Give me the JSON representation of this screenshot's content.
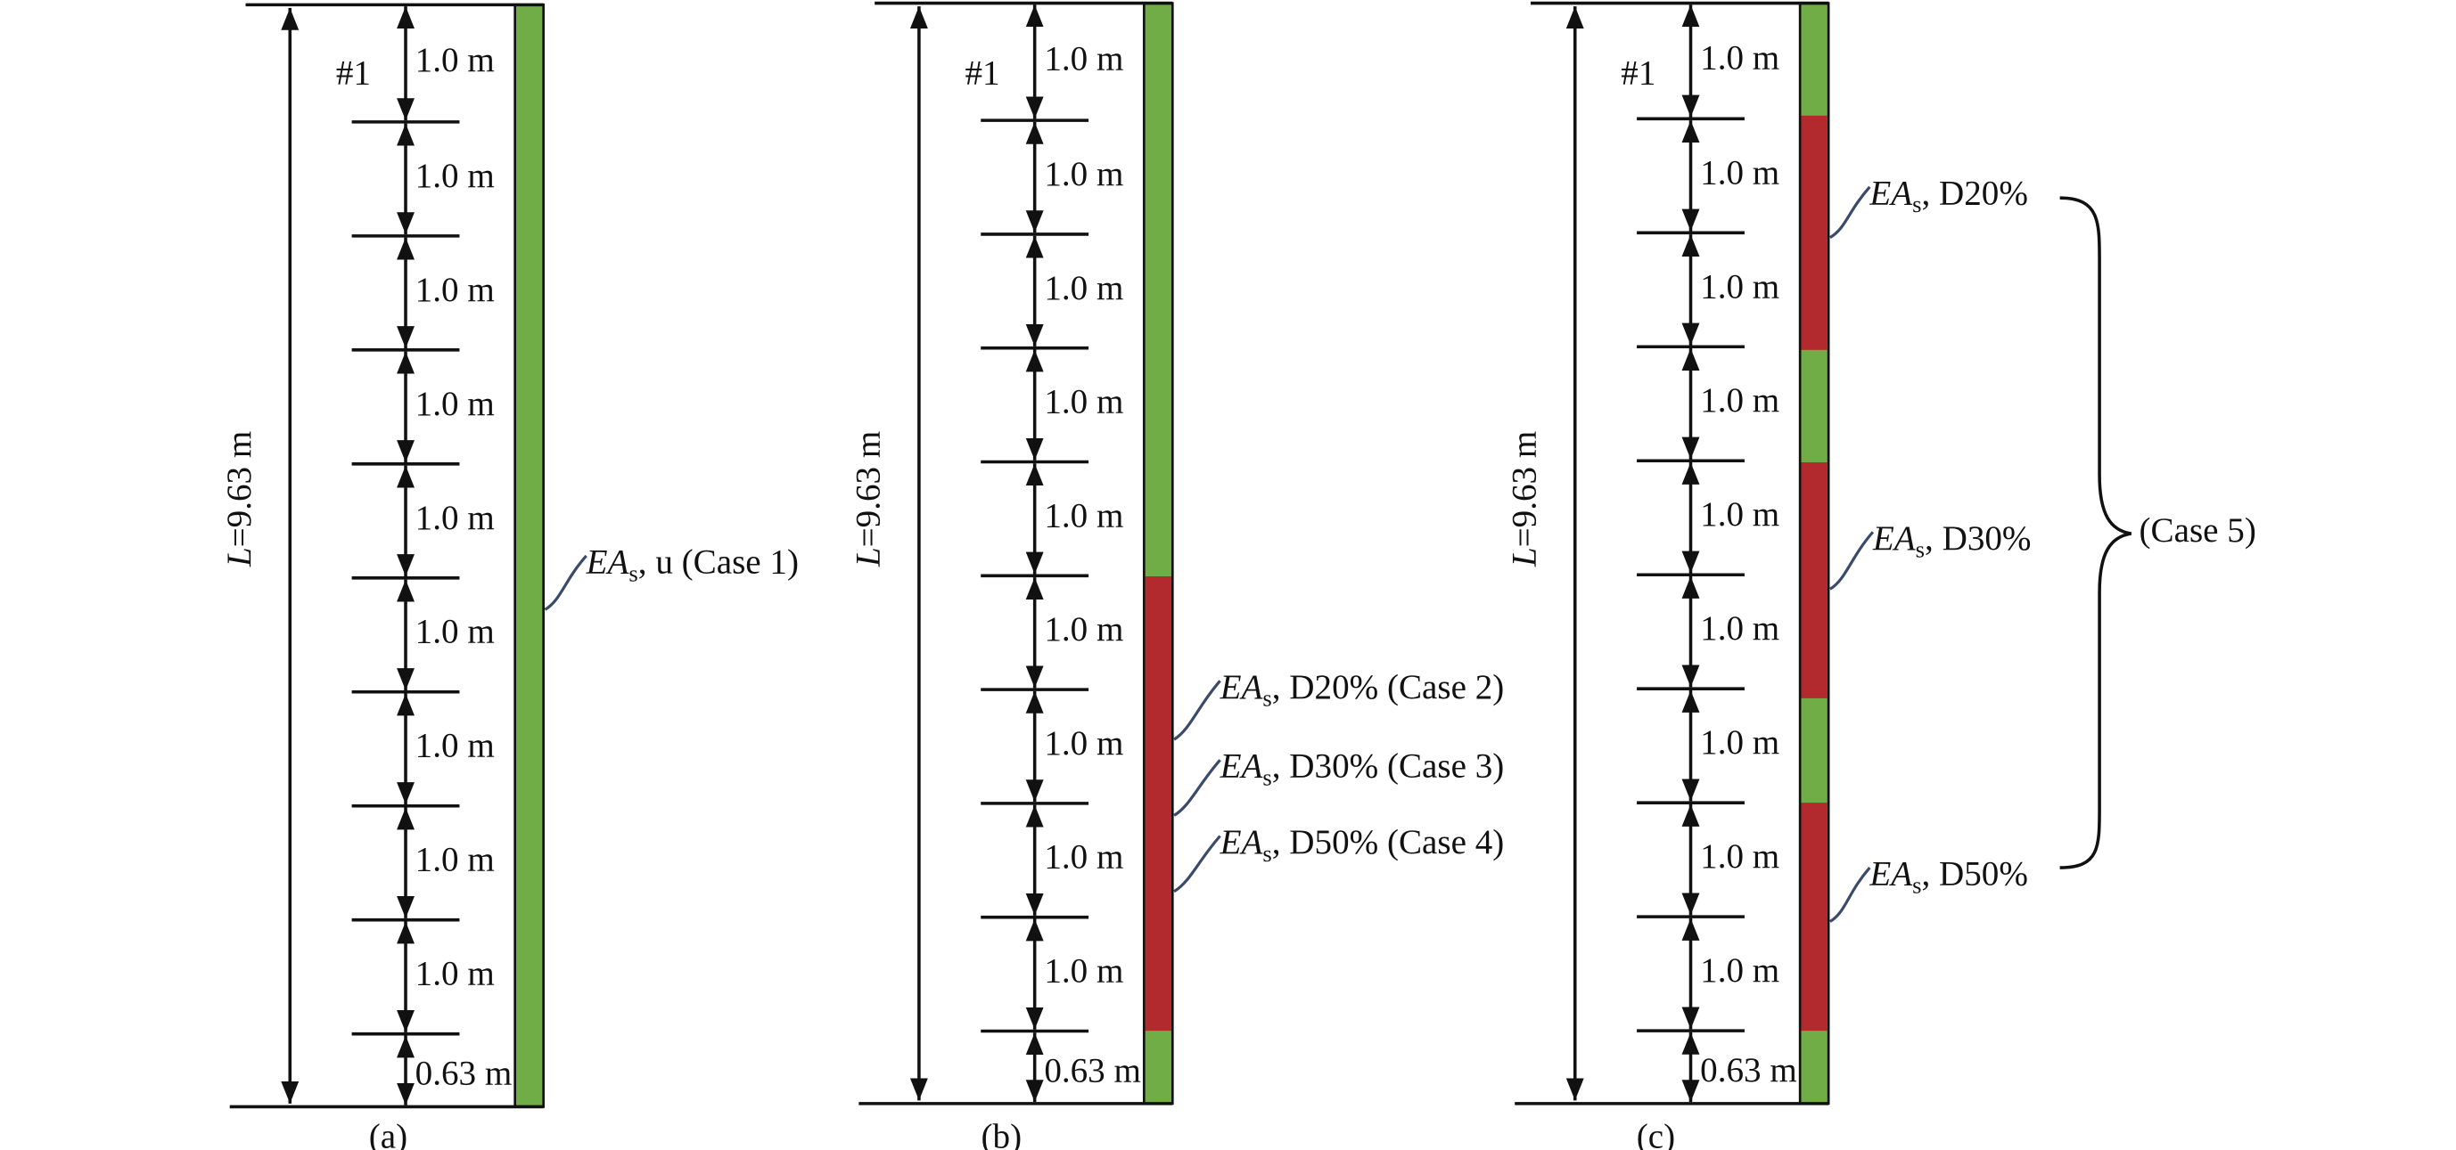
{
  "panels": [
    {
      "caption": "(a)",
      "length": {
        "symbol": "L",
        "text": "=9.63 m"
      },
      "first_label": "#1",
      "segments": [
        "1.0 m",
        "1.0 m",
        "1.0 m",
        "1.0 m",
        "1.0 m",
        "1.0 m",
        "1.0 m",
        "1.0 m",
        "1.0 m",
        "0.63 m"
      ],
      "annotations": [
        {
          "symbol": "EA",
          "subscript": "s",
          "text": ", u (Case 1)"
        }
      ]
    },
    {
      "caption": "(b)",
      "length": {
        "symbol": "L",
        "text": "=9.63 m"
      },
      "first_label": "#1",
      "segments": [
        "1.0 m",
        "1.0 m",
        "1.0 m",
        "1.0 m",
        "1.0 m",
        "1.0 m",
        "1.0 m",
        "1.0 m",
        "1.0 m",
        "0.63 m"
      ],
      "annotations": [
        {
          "symbol": "EA",
          "subscript": "s",
          "text": ", D20% (Case 2)"
        },
        {
          "symbol": "EA",
          "subscript": "s",
          "text": ", D30% (Case 3)"
        },
        {
          "symbol": "EA",
          "subscript": "s",
          "text": ", D50% (Case 4)"
        }
      ]
    },
    {
      "caption": "(c)",
      "length": {
        "symbol": "L",
        "text": "=9.63 m"
      },
      "first_label": "#1",
      "segments": [
        "1.0 m",
        "1.0 m",
        "1.0 m",
        "1.0 m",
        "1.0 m",
        "1.0 m",
        "1.0 m",
        "1.0 m",
        "1.0 m",
        "0.63 m"
      ],
      "annotations": [
        {
          "symbol": "EA",
          "subscript": "s",
          "text": ", D20%"
        },
        {
          "symbol": "EA",
          "subscript": "s",
          "text": ", D30%"
        },
        {
          "symbol": "EA",
          "subscript": "s",
          "text": ", D50%"
        }
      ],
      "group_label": "(Case 5)"
    }
  ]
}
